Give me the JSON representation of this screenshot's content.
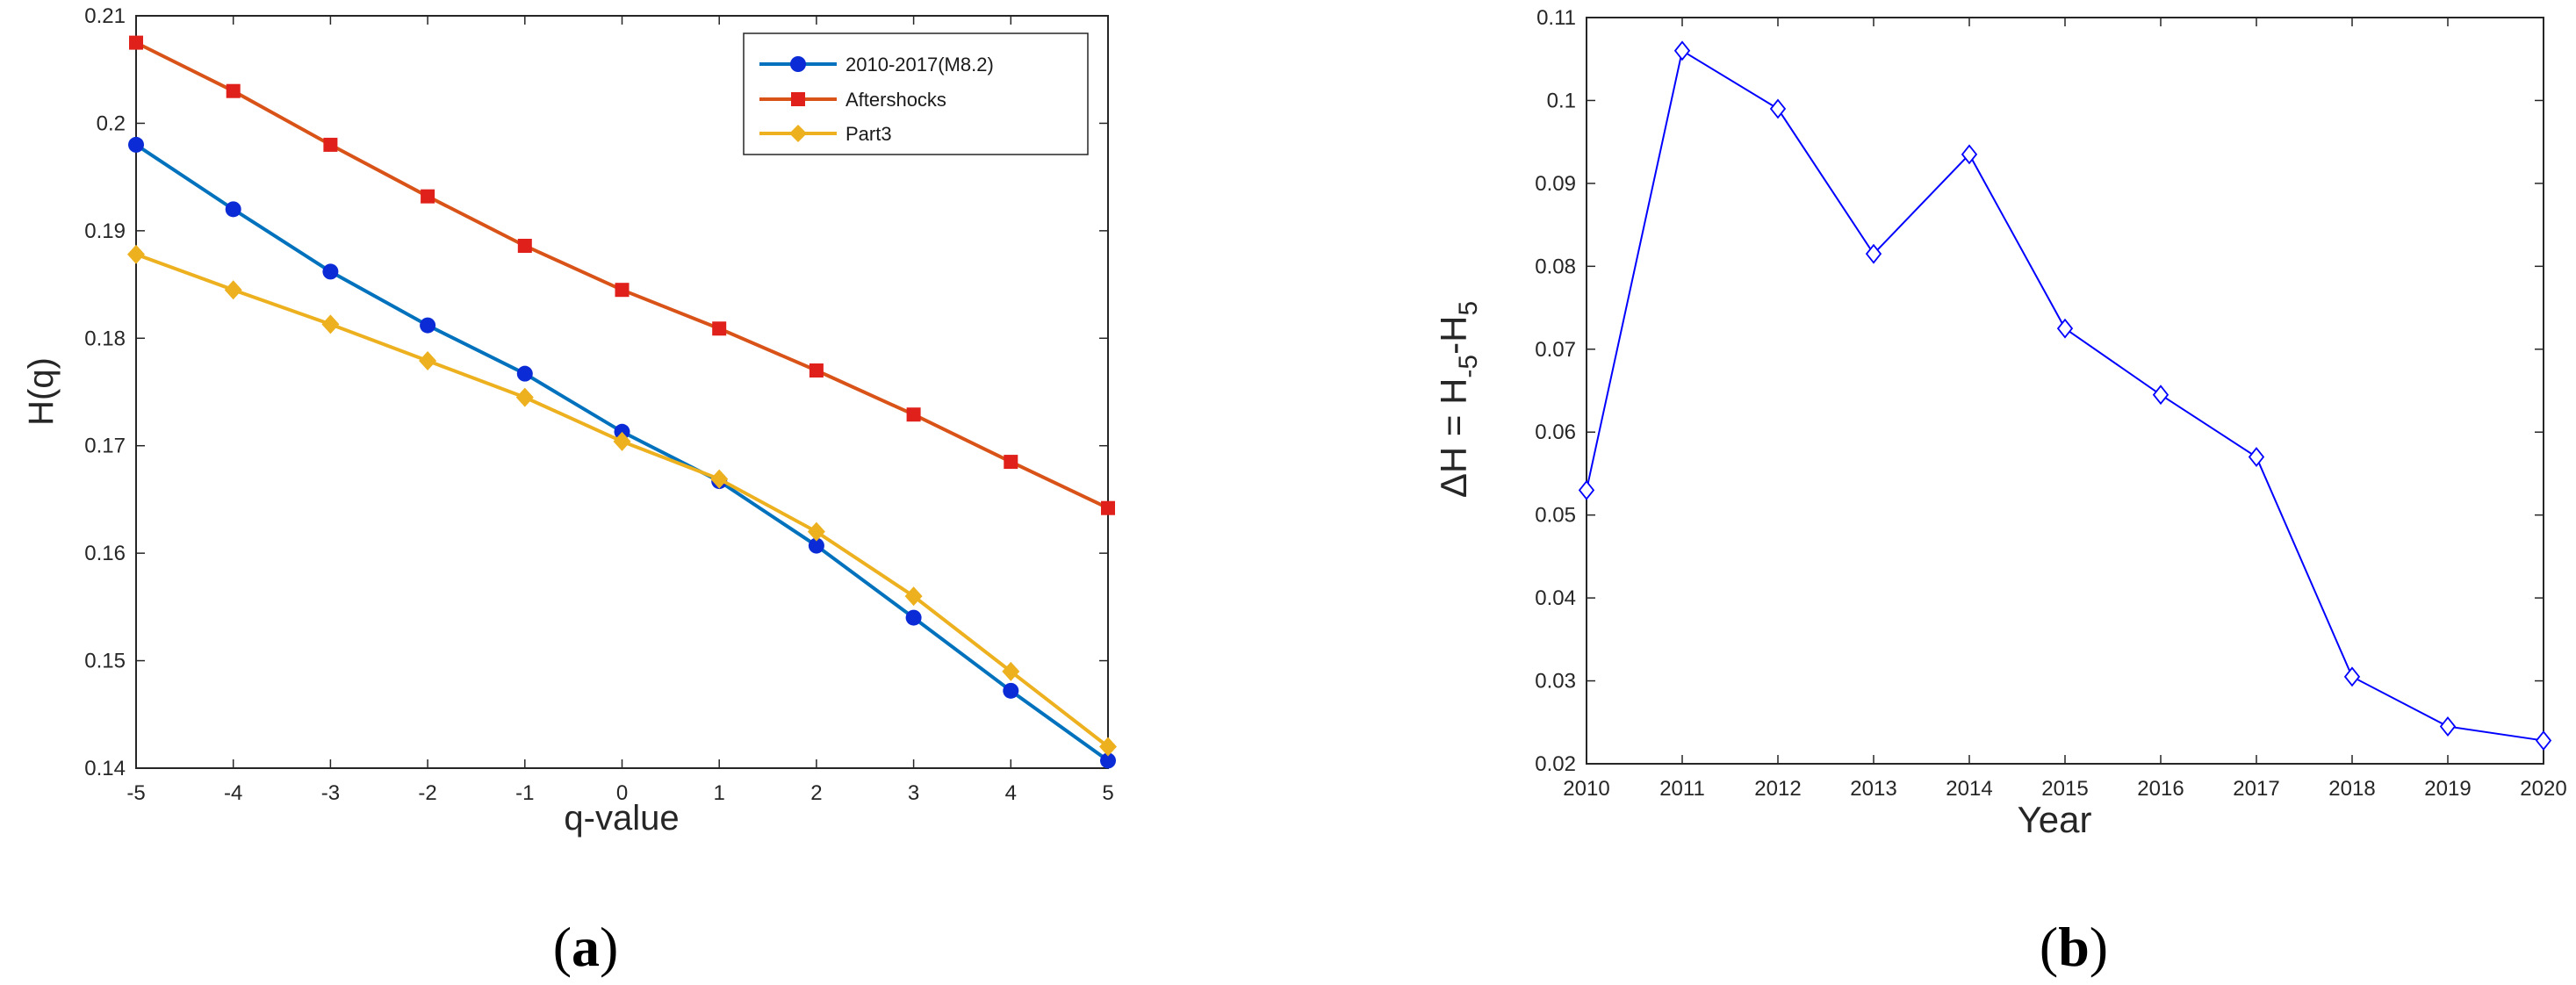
{
  "chart_data": [
    {
      "type": "line",
      "title": "",
      "xlabel": "q-value",
      "ylabel": "H(q)",
      "caption_prefix": "(",
      "caption_letter": "a",
      "caption_suffix": ")",
      "xlim": [
        -5,
        5
      ],
      "ylim": [
        0.14,
        0.21
      ],
      "x": [
        -5,
        -4,
        -3,
        -2,
        -1,
        0,
        1,
        2,
        3,
        4,
        5
      ],
      "xticks": [
        "-5",
        "-4",
        "-3",
        "-2",
        "-1",
        "0",
        "1",
        "2",
        "3",
        "4",
        "5"
      ],
      "yticks": [
        "0.14",
        "0.15",
        "0.16",
        "0.17",
        "0.18",
        "0.19",
        "0.2",
        "0.21"
      ],
      "legend_position": "top-right",
      "series": [
        {
          "name": "2010-2017(M8.2)",
          "color": "#0072BD",
          "marker": "circle",
          "markerColor": "#0b2bd6",
          "values": [
            0.198,
            0.192,
            0.1862,
            0.1812,
            0.1767,
            0.1713,
            0.1667,
            0.1607,
            0.154,
            0.1472,
            0.1407
          ]
        },
        {
          "name": "Aftershocks",
          "color": "#D95319",
          "marker": "square",
          "markerColor": "#e0201a",
          "values": [
            0.2075,
            0.203,
            0.198,
            0.1932,
            0.1886,
            0.1845,
            0.1809,
            0.177,
            0.1729,
            0.1685,
            0.1642
          ]
        },
        {
          "name": "Part3",
          "color": "#EDB120",
          "marker": "diamond",
          "markerColor": "#EDB120",
          "values": [
            0.1878,
            0.1845,
            0.1813,
            0.1779,
            0.1745,
            0.1704,
            0.1669,
            0.162,
            0.156,
            0.149,
            0.142
          ]
        }
      ]
    },
    {
      "type": "line",
      "title": "",
      "xlabel": "Year",
      "ylabel_parts": [
        "ΔH = H",
        "-5",
        "-H",
        "5"
      ],
      "caption_prefix": "(",
      "caption_letter": "b",
      "caption_suffix": ")",
      "xlim": [
        2010,
        2020
      ],
      "ylim": [
        0.02,
        0.11
      ],
      "categories": [
        "2010",
        "2011",
        "2012",
        "2013",
        "2014",
        "2015",
        "2016",
        "2017",
        "2018",
        "2019",
        "2020"
      ],
      "yticks": [
        "0.02",
        "0.03",
        "0.04",
        "0.05",
        "0.06",
        "0.07",
        "0.08",
        "0.09",
        "0.1",
        "0.11"
      ],
      "series": [
        {
          "name": "ΔH",
          "color": "#0000FF",
          "marker": "diamond-open",
          "values": [
            0.053,
            0.106,
            0.099,
            0.0815,
            0.0935,
            0.0725,
            0.0645,
            0.057,
            0.0305,
            0.0245,
            0.0228
          ]
        }
      ]
    }
  ]
}
